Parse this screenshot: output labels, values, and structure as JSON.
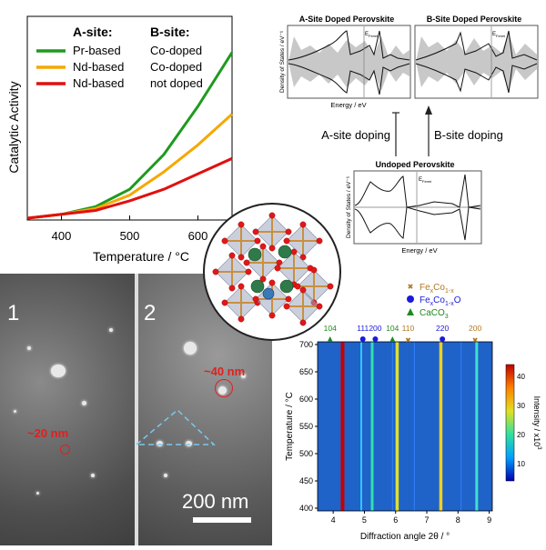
{
  "catalysis": {
    "ylabel": "Catalytic Activity",
    "xlabel": "Temperature / °C",
    "xticks": [
      "400",
      "500",
      "600"
    ],
    "legend_header_a": "A-site:",
    "legend_header_b": "B-site:",
    "legend": [
      {
        "a": "Pr-based",
        "b": "Co-doped",
        "color": "#1e9a1e"
      },
      {
        "a": "Nd-based",
        "b": "Co-doped",
        "color": "#f5a800"
      },
      {
        "a": "Nd-based",
        "b": "not doped",
        "color": "#e01010"
      }
    ]
  },
  "dos": {
    "a_title": "A-Site Doped Perovskite",
    "b_title": "B-Site Doped Perovskite",
    "u_title": "Undoped Perovskite",
    "ylabel": "Density of States / eV⁻¹",
    "xlabel": "Energy / eV",
    "efermi": "E",
    "efermi_sub": "Fermi",
    "a_doping": "A-site doping",
    "b_doping": "B-site doping"
  },
  "sem": {
    "panel1": "1",
    "panel2": "2",
    "ann1": "~20 nm",
    "ann2": "~40 nm",
    "scale": "200 nm"
  },
  "xrd": {
    "legend": [
      {
        "label": "Fe",
        "sub1": "x",
        "mid": "Co",
        "sub2": "1-x",
        "tail": "",
        "color": "#b07820",
        "marker": "cross"
      },
      {
        "label": "Fe",
        "sub1": "x",
        "mid": "Co",
        "sub2": "1-x",
        "tail": "O",
        "color": "#1a1adc",
        "marker": "circle"
      },
      {
        "label": "CaCO",
        "sub1": "",
        "mid": "",
        "sub2": "3",
        "tail": "",
        "color": "#1e8a1e",
        "marker": "triangle"
      }
    ],
    "peak_labels": [
      {
        "text": "104",
        "color": "#1e8a1e"
      },
      {
        "text": "111",
        "color": "#1a1adc"
      },
      {
        "text": "200",
        "color": "#1a1adc"
      },
      {
        "text": "104",
        "color": "#1e8a1e"
      },
      {
        "text": "110",
        "color": "#b07820"
      },
      {
        "text": "220",
        "color": "#1a1adc"
      },
      {
        "text": "200",
        "color": "#b07820"
      }
    ],
    "ylabel": "Temperature / °C",
    "xlabel": "Diffraction angle 2θ / °",
    "yticks": [
      "400",
      "450",
      "500",
      "550",
      "600",
      "650",
      "700"
    ],
    "xticks": [
      "4",
      "5",
      "6",
      "7",
      "8",
      "9"
    ],
    "cbar_label": "Intensity / x10",
    "cbar_exp": "3",
    "cbar_ticks": [
      "10",
      "20",
      "30",
      "40"
    ]
  },
  "chart_data": {
    "type": "line",
    "xlabel": "Temperature / °C",
    "ylabel": "Catalytic Activity",
    "xlim": [
      350,
      650
    ],
    "ylim": [
      0,
      1
    ],
    "series": [
      {
        "name": "Pr-based Co-doped",
        "x": [
          350,
          400,
          450,
          500,
          550,
          600,
          650
        ],
        "y": [
          0.0,
          0.02,
          0.06,
          0.15,
          0.33,
          0.58,
          0.86
        ]
      },
      {
        "name": "Nd-based Co-doped",
        "x": [
          350,
          400,
          450,
          500,
          550,
          600,
          650
        ],
        "y": [
          0.0,
          0.02,
          0.05,
          0.12,
          0.24,
          0.38,
          0.54
        ]
      },
      {
        "name": "Nd-based not doped",
        "x": [
          350,
          400,
          450,
          500,
          550,
          600,
          650
        ],
        "y": [
          0.0,
          0.02,
          0.04,
          0.09,
          0.15,
          0.23,
          0.31
        ]
      }
    ]
  }
}
